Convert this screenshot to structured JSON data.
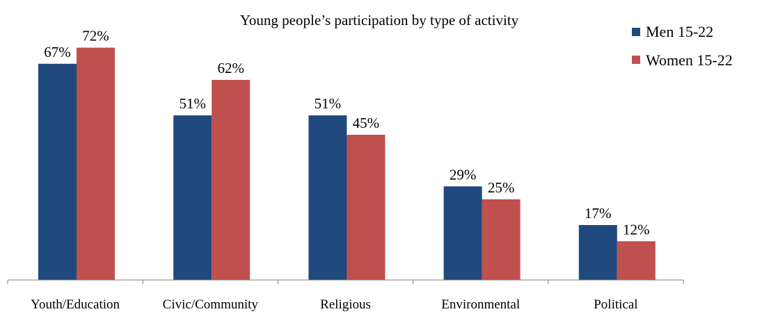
{
  "chart_data": {
    "type": "bar",
    "title": "Young people’s participation by type of activity",
    "xlabel": "",
    "ylabel": "",
    "categories": [
      "Youth/Education",
      "Civic/Community",
      "Religious",
      "Environmental",
      "Political"
    ],
    "series": [
      {
        "name": "Men 15-22",
        "values": [
          67,
          51,
          51,
          29,
          17
        ],
        "labels": [
          "67%",
          "51%",
          "51%",
          "29%",
          "17%"
        ],
        "color": "#1F497D"
      },
      {
        "name": "Women 15-22",
        "values": [
          72,
          62,
          45,
          25,
          12
        ],
        "labels": [
          "72%",
          "62%",
          "45%",
          "25%",
          "12%"
        ],
        "color": "#C0504D"
      }
    ],
    "ylim": [
      0,
      80
    ],
    "grid": false,
    "legend_position": "top-right"
  }
}
